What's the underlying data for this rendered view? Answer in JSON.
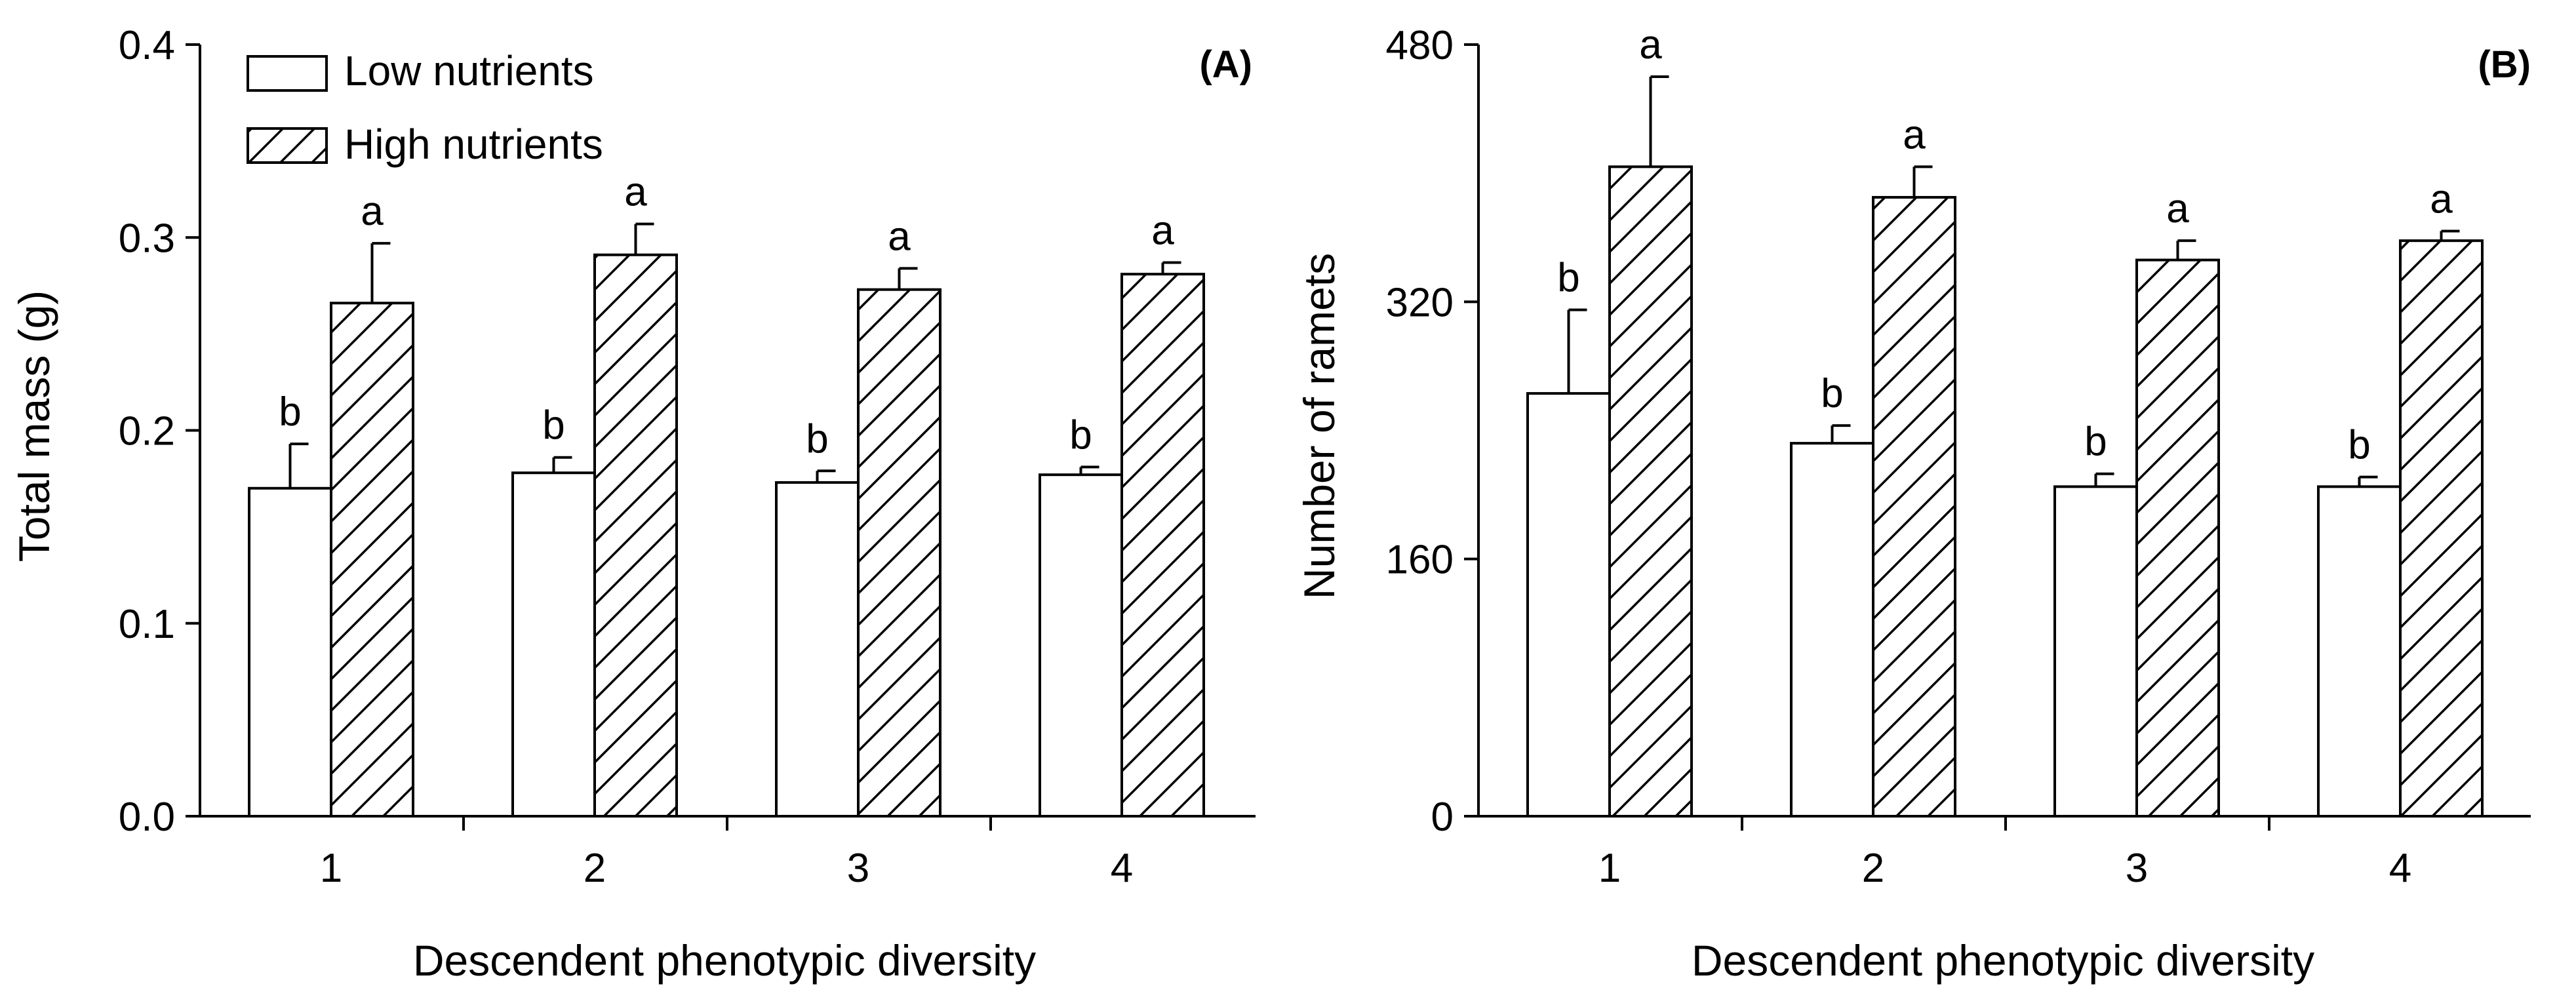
{
  "chart_data": [
    {
      "type": "bar",
      "panel_label": "(A)",
      "categories": [
        "1",
        "2",
        "3",
        "4"
      ],
      "series": [
        {
          "name": "Low nutrients",
          "values": [
            0.17,
            0.178,
            0.173,
            0.177
          ],
          "errors": [
            0.023,
            0.008,
            0.006,
            0.004
          ],
          "significance": [
            "b",
            "b",
            "b",
            "b"
          ]
        },
        {
          "name": "High nutrients",
          "values": [
            0.266,
            0.291,
            0.273,
            0.281
          ],
          "errors": [
            0.031,
            0.016,
            0.011,
            0.006
          ],
          "significance": [
            "a",
            "a",
            "a",
            "a"
          ]
        }
      ],
      "xlabel": "Descendent phenotypic diversity",
      "ylabel": "Total mass (g)",
      "ylim": [
        0,
        0.4
      ],
      "yticks": [
        0.0,
        0.1,
        0.2,
        0.3,
        0.4
      ],
      "ytick_labels": [
        "0.0",
        "0.1",
        "0.2",
        "0.3",
        "0.4"
      ],
      "legend_position": "top-left",
      "grid": false
    },
    {
      "type": "bar",
      "panel_label": "(B)",
      "categories": [
        "1",
        "2",
        "3",
        "4"
      ],
      "series": [
        {
          "name": "Low nutrients",
          "values": [
            263,
            232,
            205,
            205
          ],
          "errors": [
            52,
            11,
            8,
            6
          ],
          "significance": [
            "b",
            "b",
            "b",
            "b"
          ]
        },
        {
          "name": "High nutrients",
          "values": [
            404,
            385,
            346,
            358
          ],
          "errors": [
            56,
            19,
            12,
            6
          ],
          "significance": [
            "a",
            "a",
            "a",
            "a"
          ]
        }
      ],
      "xlabel": "Descendent phenotypic diversity",
      "ylabel": "Number of ramets",
      "ylim": [
        0,
        480
      ],
      "yticks": [
        0,
        160,
        320,
        480
      ],
      "ytick_labels": [
        "0",
        "160",
        "320",
        "480"
      ],
      "grid": false
    }
  ]
}
